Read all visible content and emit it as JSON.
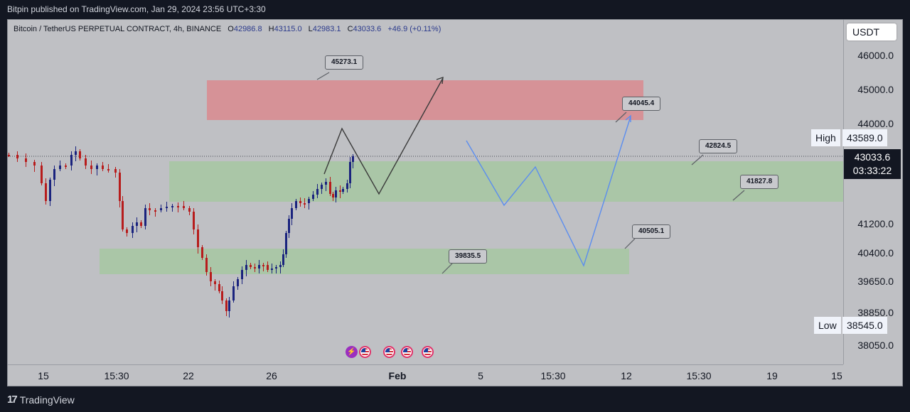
{
  "header": {
    "text": "Bitpin published on TradingView.com, Jan 29, 2024 23:56 UTC+3:30"
  },
  "legend": {
    "symbol": "Bitcoin / TetherUS PERPETUAL CONTRACT, 4h, BINANCE",
    "o_key": "O",
    "o_val": "42986.8",
    "h_key": "H",
    "h_val": "43115.0",
    "l_key": "L",
    "l_val": "42983.1",
    "c_key": "C",
    "c_val": "43033.6",
    "change": "+46.9 (+0.11%)"
  },
  "currency": "USDT",
  "price_axis": [
    "46000.0",
    "45000.0",
    "44000.0",
    "41200.0",
    "40400.0",
    "39650.0",
    "38850.0",
    "38050.0"
  ],
  "high": {
    "label": "High",
    "value": "43589.0"
  },
  "low": {
    "label": "Low",
    "value": "38545.0"
  },
  "current": {
    "price": "43033.6",
    "countdown": "03:33:22"
  },
  "time_axis": [
    "15",
    "15:30",
    "22",
    "26",
    "Feb",
    "5",
    "15:30",
    "12",
    "15:30",
    "19",
    "15"
  ],
  "callouts": [
    "45273.1",
    "44045.4",
    "42824.5",
    "41827.8",
    "40505.1",
    "39835.5"
  ],
  "footer": {
    "brand": "TradingView"
  },
  "colors": {
    "background": "#bfc0c4",
    "resistance_zone": "#d98a8f",
    "support_zone": "#a7c7a4",
    "bull": "#1a237e",
    "bear": "#b71c1c",
    "projection_blue": "#5b8def",
    "projection_dark": "#3a3a3a"
  },
  "icons": {
    "events": [
      "bolt-icon",
      "us-flag-icon",
      "us-flag-icon",
      "us-flag-icon",
      "us-flag-icon"
    ]
  },
  "chart_data": {
    "type": "candlestick",
    "interval": "4h",
    "ylim": [
      37900,
      46400
    ],
    "zones": [
      {
        "kind": "resistance",
        "from": 44045.4,
        "to": 45273.1
      },
      {
        "kind": "support",
        "from": 41827.8,
        "to": 42824.5
      },
      {
        "kind": "support",
        "from": 39835.5,
        "to": 40505.1
      }
    ],
    "projection_dark": [
      42820,
      43800,
      42030,
      45273.1
    ],
    "projection_blue": [
      43700,
      41750,
      42830,
      40100,
      44045.4
    ]
  }
}
